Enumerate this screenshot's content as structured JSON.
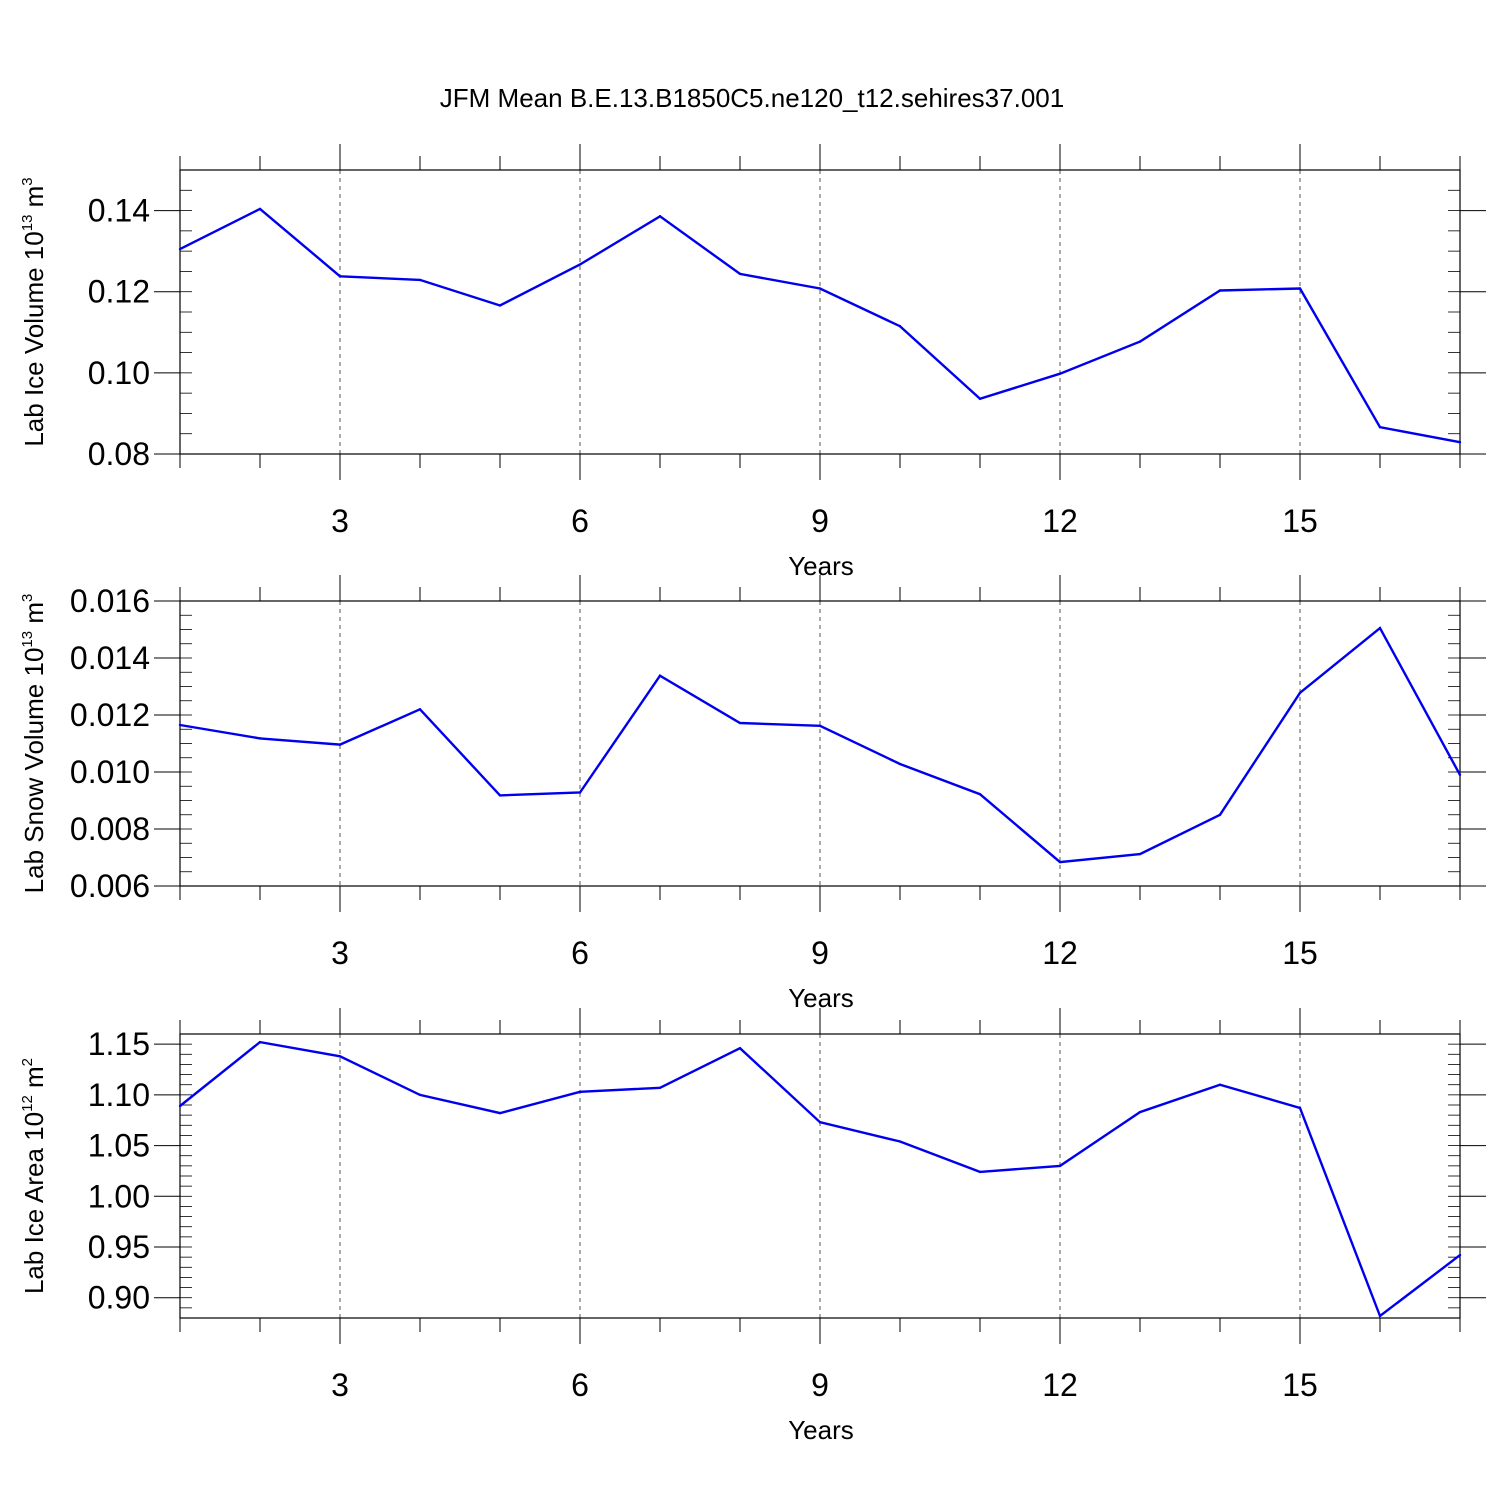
{
  "title": "JFM Mean B.E.13.B1850C5.ne120_t12.sehires37.001",
  "colors": {
    "line": "#0000ee",
    "axis": "#000000",
    "grid": "#555555"
  },
  "chart_data": [
    {
      "type": "line",
      "ylabel": {
        "text": "Lab Ice Volume 10",
        "sup": "13",
        "unit": " m",
        "unit_sup": "3"
      },
      "xlabel": "Years",
      "xlim": [
        1,
        17
      ],
      "ylim": [
        0.08,
        0.15
      ],
      "x_ticks": [
        "3",
        "6",
        "9",
        "12",
        "15"
      ],
      "y_ticks": [
        "0.08",
        "0.10",
        "0.12",
        "0.14"
      ],
      "grid": "vertical dashed at major x ticks",
      "x": [
        1,
        2,
        3,
        4,
        5,
        6,
        7,
        8,
        9,
        10,
        11,
        12,
        13,
        14,
        15,
        16,
        17
      ],
      "values": [
        0.1305,
        0.1404,
        0.1238,
        0.1229,
        0.1166,
        0.1267,
        0.1386,
        0.1244,
        0.1208,
        0.1115,
        0.0936,
        0.0998,
        0.1077,
        0.1203,
        0.1208,
        0.0866,
        0.0829
      ]
    },
    {
      "type": "line",
      "ylabel": {
        "text": "Lab Snow Volume 10",
        "sup": "13",
        "unit": " m",
        "unit_sup": "3"
      },
      "xlabel": "Years",
      "xlim": [
        1,
        17
      ],
      "ylim": [
        0.006,
        0.016
      ],
      "x_ticks": [
        "3",
        "6",
        "9",
        "12",
        "15"
      ],
      "y_ticks": [
        "0.006",
        "0.008",
        "0.010",
        "0.012",
        "0.014",
        "0.016"
      ],
      "grid": "vertical dashed at major x ticks",
      "x": [
        1,
        2,
        3,
        4,
        5,
        6,
        7,
        8,
        9,
        10,
        11,
        12,
        13,
        14,
        15,
        16,
        17
      ],
      "values": [
        0.01165,
        0.01118,
        0.01096,
        0.0122,
        0.00918,
        0.00928,
        0.01338,
        0.01172,
        0.01162,
        0.01028,
        0.00922,
        0.00684,
        0.00712,
        0.0085,
        0.01278,
        0.01505,
        0.0099
      ]
    },
    {
      "type": "line",
      "ylabel": {
        "text": "Lab Ice Area 10",
        "sup": "12",
        "unit": " m",
        "unit_sup": "2"
      },
      "xlabel": "Years",
      "xlim": [
        1,
        17
      ],
      "ylim": [
        0.88,
        1.16
      ],
      "x_ticks": [
        "3",
        "6",
        "9",
        "12",
        "15"
      ],
      "y_ticks": [
        "0.90",
        "0.95",
        "1.00",
        "1.05",
        "1.10",
        "1.15"
      ],
      "grid": "vertical dashed at major x ticks",
      "x": [
        1,
        2,
        3,
        4,
        5,
        6,
        7,
        8,
        9,
        10,
        11,
        12,
        13,
        14,
        15,
        16,
        17
      ],
      "values": [
        1.089,
        1.152,
        1.138,
        1.1,
        1.082,
        1.103,
        1.107,
        1.146,
        1.073,
        1.054,
        1.024,
        1.03,
        1.083,
        1.11,
        1.087,
        0.882,
        0.942
      ]
    }
  ]
}
